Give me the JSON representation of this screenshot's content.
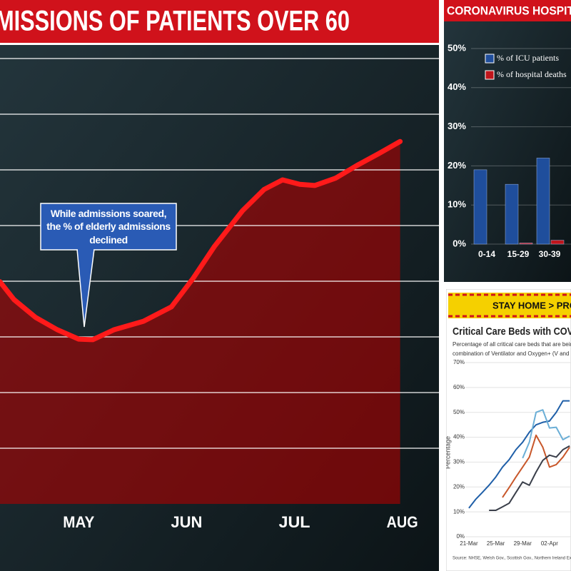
{
  "chart_data": [
    {
      "type": "area",
      "title": "MISSIONS OF PATIENTS OVER 60",
      "annotation": "While admissions soared, the % of elderly admissions declined",
      "x": [
        4.27,
        4.4,
        4.6,
        4.8,
        5.0,
        5.13,
        5.33,
        5.6,
        5.86,
        6.06,
        6.26,
        6.52,
        6.72,
        6.89,
        7.05,
        7.19,
        7.38,
        7.58,
        7.78,
        7.98
      ],
      "values": [
        3.99,
        3.67,
        3.35,
        3.13,
        2.96,
        2.95,
        3.13,
        3.28,
        3.54,
        4.05,
        4.63,
        5.27,
        5.65,
        5.82,
        5.74,
        5.72,
        5.85,
        6.08,
        6.29,
        6.51
      ],
      "color": "#ff1a1a",
      "xlim": [
        4.27,
        8.34
      ],
      "xticks": [
        {
          "value": 5,
          "label": "MAY"
        },
        {
          "value": 6,
          "label": "JUN"
        },
        {
          "value": 7,
          "label": "JUL"
        },
        {
          "value": 8,
          "label": "AUG"
        }
      ],
      "ylim": [
        0,
        8
      ],
      "yticks": [
        1,
        2,
        3,
        4,
        5,
        6,
        7,
        8
      ],
      "grid": true
    },
    {
      "type": "bar",
      "title": "CORONAVIRUS HOSPIT",
      "categories": [
        "0-14",
        "15-29",
        "30-39"
      ],
      "series": [
        {
          "name": "% of ICU patients",
          "color": "#1f4e9c",
          "values": [
            19,
            15.3,
            22
          ]
        },
        {
          "name": "% of hospital deaths",
          "color": "#c0151b",
          "values": [
            0,
            0.3,
            1
          ]
        }
      ],
      "ylim": [
        0,
        50
      ],
      "yticks": [
        {
          "value": 0,
          "label": "0%"
        },
        {
          "value": 10,
          "label": "10%"
        },
        {
          "value": 20,
          "label": "20%"
        },
        {
          "value": 30,
          "label": "30%"
        },
        {
          "value": 40,
          "label": "40%"
        },
        {
          "value": 50,
          "label": "50%"
        }
      ],
      "legend": "upper left"
    },
    {
      "type": "line",
      "banner": "STAY HOME > PROTECT T",
      "title": "Critical Care Beds with COVID-",
      "subtitle": [
        "Percentage of all critical care beds that are being used for C",
        "combination of Ventilator and Oxygen+ (V and O+) beds."
      ],
      "ylabel": "Percentage",
      "source": "Source: NHSE, Welsh Gov., Scottish Gov., Northern Ireland Executive.",
      "x": [
        0,
        1,
        2,
        3,
        4,
        5,
        6,
        7,
        8,
        9,
        10,
        11,
        12,
        13,
        14,
        15
      ],
      "series": [
        {
          "color": "#1f5fa8",
          "values": [
            11.5,
            15,
            17.8,
            20.7,
            24,
            28,
            31,
            35,
            38,
            42,
            45,
            46,
            46.5,
            50,
            54.6,
            54.6
          ]
        },
        {
          "color": "#6aaed6",
          "values": [
            null,
            null,
            null,
            null,
            null,
            null,
            null,
            null,
            31.6,
            38,
            50,
            51,
            43.7,
            44,
            39,
            40.5
          ]
        },
        {
          "color": "#c8572a",
          "values": [
            null,
            null,
            null,
            null,
            null,
            15.8,
            19.8,
            24,
            28,
            32,
            40.8,
            36,
            28,
            29,
            32,
            36
          ]
        },
        {
          "color": "#3a3f4a",
          "values": [
            null,
            null,
            null,
            10.6,
            10.6,
            12,
            13.5,
            17.8,
            22,
            20.7,
            26,
            30.7,
            32.8,
            32,
            35,
            36.5
          ]
        }
      ],
      "xlim": [
        -1.8,
        15.2
      ],
      "xticks": [
        {
          "value": 0,
          "label": "21-Mar"
        },
        {
          "value": 4,
          "label": "25-Mar"
        },
        {
          "value": 8,
          "label": "29-Mar"
        },
        {
          "value": 12,
          "label": "02-Apr"
        }
      ],
      "ylim": [
        0,
        70
      ],
      "yticks": [
        {
          "value": 0,
          "label": "0%"
        },
        {
          "value": 10,
          "label": "10%"
        },
        {
          "value": 20,
          "label": "20%"
        },
        {
          "value": 30,
          "label": "30%"
        },
        {
          "value": 40,
          "label": "40%"
        },
        {
          "value": 50,
          "label": "50%"
        },
        {
          "value": 60,
          "label": "60%"
        },
        {
          "value": 70,
          "label": "70%"
        }
      ],
      "grid": true
    }
  ]
}
